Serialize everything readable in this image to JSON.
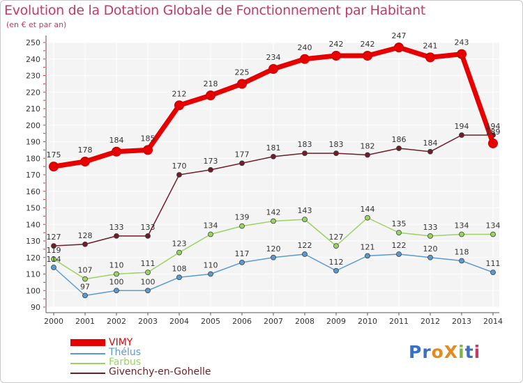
{
  "header": {
    "title": "Evolution de la Dotation Globale de Fonctionnement par Habitant",
    "subtitle": "(en € et par an)"
  },
  "logo": {
    "text": "ProXiti",
    "letters": [
      "P",
      "r",
      "o",
      "X",
      "i",
      "t",
      "i"
    ],
    "colors": [
      "#3a6fc4",
      "#3a6fc4",
      "#e58a1f",
      "#e58a1f",
      "#7ab640",
      "#3a6fc4",
      "#c43a6b"
    ]
  },
  "chart_data": {
    "type": "line",
    "title": "Evolution de la Dotation Globale de Fonctionnement par Habitant",
    "subtitle": "(en € et par an)",
    "xlabel": "",
    "ylabel": "",
    "x": [
      "2000",
      "2001",
      "2002",
      "2003",
      "2004",
      "2005",
      "2006",
      "2007",
      "2008",
      "2009",
      "2010",
      "2011",
      "2012",
      "2013",
      "2014"
    ],
    "ylim": [
      90,
      250
    ],
    "yticks": [
      90,
      100,
      110,
      120,
      130,
      140,
      150,
      160,
      170,
      180,
      190,
      200,
      210,
      220,
      230,
      240,
      250
    ],
    "grid": true,
    "legend": "bottom-left",
    "series": [
      {
        "name": "VIMY",
        "color": "#e60000",
        "values": [
          175,
          178,
          184,
          185,
          212,
          218,
          225,
          234,
          240,
          242,
          242,
          247,
          241,
          243,
          189
        ],
        "labels": [
          "175",
          "178",
          "184",
          "185",
          "212",
          "218",
          "225",
          "234",
          "240",
          "242",
          "242",
          "247",
          "241",
          "243",
          "189"
        ]
      },
      {
        "name": "Thélus",
        "color": "#5a9ad2",
        "values": [
          114,
          97,
          100,
          100,
          108,
          110,
          117,
          120,
          122,
          112,
          121,
          122,
          120,
          118,
          111
        ],
        "labels": [
          "114",
          "97",
          "100",
          "100",
          "108",
          "110",
          "117",
          "120",
          "122",
          "112",
          "121",
          "122",
          "120",
          "118",
          "111"
        ]
      },
      {
        "name": "Farbus",
        "color": "#9ad264",
        "values": [
          119,
          107,
          110,
          111,
          123,
          134,
          139,
          142,
          143,
          127,
          144,
          135,
          133,
          134,
          134
        ],
        "labels": [
          "119",
          "107",
          "110",
          "111",
          "123",
          "134",
          "139",
          "142",
          "143",
          "127",
          "144",
          "135",
          "133",
          "134",
          "134"
        ]
      },
      {
        "name": "Givenchy-en-Gohelle",
        "color": "#6e1e28",
        "values": [
          127,
          128,
          133,
          133,
          170,
          173,
          177,
          181,
          183,
          183,
          182,
          186,
          184,
          194,
          194
        ],
        "labels": [
          "127",
          "128",
          "133",
          "133",
          "170",
          "173",
          "177",
          "181",
          "183",
          "183",
          "182",
          "186",
          "184",
          "194",
          "194"
        ]
      }
    ]
  }
}
